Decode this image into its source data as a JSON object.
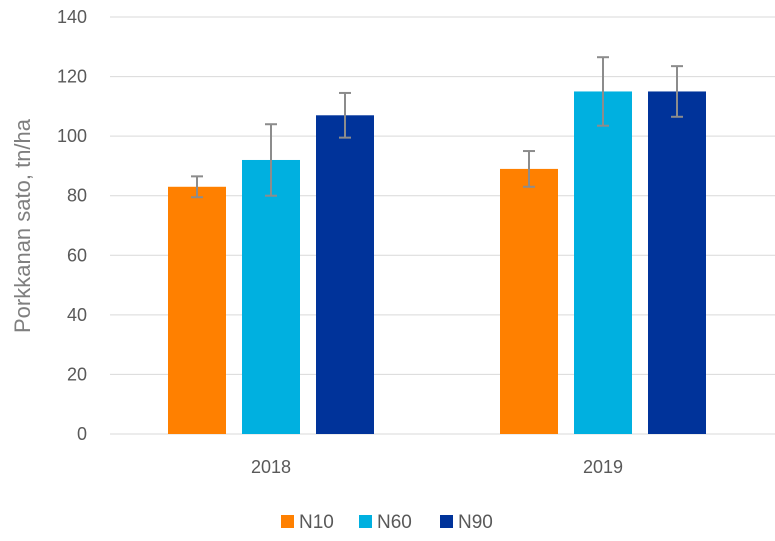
{
  "chart_data": {
    "type": "bar",
    "categories": [
      "2018",
      "2019"
    ],
    "ylabel": "Porkkanan sato, tn/ha",
    "xlabel": "",
    "ylim": [
      0,
      140
    ],
    "yticks": [
      "0",
      "20",
      "40",
      "60",
      "80",
      "100",
      "120",
      "140"
    ],
    "grid": true,
    "legend_position": "bottom",
    "error_bars": true,
    "series": [
      {
        "name": "N10",
        "color": "#FF8000",
        "values": [
          83,
          89
        ],
        "errors": [
          3.5,
          6
        ]
      },
      {
        "name": "N60",
        "color": "#00B0E0",
        "values": [
          92,
          115
        ],
        "errors": [
          12,
          11.5
        ]
      },
      {
        "name": "N90",
        "color": "#00339A",
        "values": [
          107,
          115
        ],
        "errors": [
          7.5,
          8.5
        ]
      }
    ]
  }
}
